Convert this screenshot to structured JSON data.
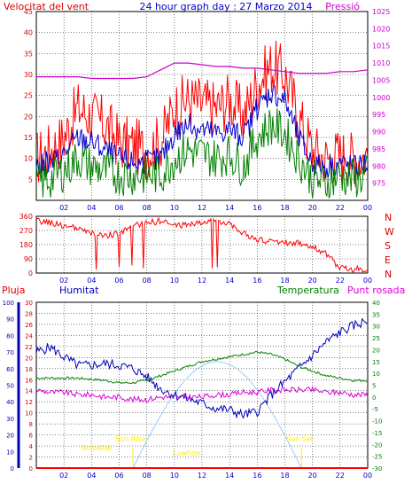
{
  "header": {
    "left_title": "Velocitat del vent",
    "center_title": "24 hour graph day : 27 Marzo 2014",
    "right_title": "Pressió"
  },
  "colors": {
    "wind_gust": "#ff0000",
    "wind_avg": "#0000cc",
    "wind_min": "#008000",
    "pressure": "#cc00cc",
    "direction": "#ff0000",
    "humidity": "#0000bb",
    "temperature": "#008000",
    "dewpoint": "#dd00dd",
    "rain": "#ff0000",
    "sun": "#99ccff",
    "sun_labels": "#ffee00",
    "grid": "#000000",
    "axis_time": "#0000cc"
  },
  "chart_data": [
    {
      "type": "line",
      "id": "wind-pressure",
      "title": "24 hour graph day : 27 Marzo 2014",
      "xlabel": "",
      "x_ticks": [
        "02",
        "04",
        "06",
        "08",
        "10",
        "12",
        "14",
        "16",
        "18",
        "20",
        "22",
        "00"
      ],
      "xlim": [
        0,
        24
      ],
      "left_axis": {
        "label": "Velocitat del vent",
        "ylim": [
          0,
          45
        ],
        "ticks": [
          5,
          10,
          15,
          20,
          25,
          30,
          35,
          40,
          45
        ]
      },
      "right_axis": {
        "label": "Pressió",
        "ylim": [
          970,
          1025
        ],
        "ticks": [
          975,
          980,
          985,
          990,
          995,
          1000,
          1005,
          1010,
          1015,
          1020,
          1025
        ]
      },
      "series": [
        {
          "name": "gust",
          "axis": "left",
          "x": [
            0,
            1,
            2,
            3,
            4,
            5,
            6,
            7,
            8,
            9,
            10,
            11,
            12,
            13,
            14,
            15,
            16,
            17,
            18,
            19,
            20,
            21,
            22,
            23,
            24
          ],
          "values": [
            10,
            12,
            15,
            22,
            20,
            18,
            14,
            13,
            12,
            14,
            22,
            24,
            23,
            22,
            24,
            20,
            28,
            32,
            30,
            20,
            12,
            10,
            11,
            10,
            11
          ]
        },
        {
          "name": "average",
          "axis": "left",
          "x": [
            0,
            1,
            2,
            3,
            4,
            5,
            6,
            7,
            8,
            9,
            10,
            11,
            12,
            13,
            14,
            15,
            16,
            17,
            18,
            19,
            20,
            21,
            22,
            23,
            24
          ],
          "values": [
            8,
            9,
            11,
            15,
            14,
            12,
            10,
            9,
            9,
            10,
            16,
            18,
            17,
            16,
            17,
            15,
            22,
            26,
            24,
            15,
            9,
            8,
            9,
            8,
            9
          ]
        },
        {
          "name": "minimum",
          "axis": "left",
          "x": [
            0,
            1,
            2,
            3,
            4,
            5,
            6,
            7,
            8,
            9,
            10,
            11,
            12,
            13,
            14,
            15,
            16,
            17,
            18,
            19,
            20,
            21,
            22,
            23,
            24
          ],
          "values": [
            4,
            5,
            7,
            10,
            8,
            7,
            6,
            6,
            6,
            6,
            10,
            12,
            11,
            10,
            11,
            8,
            15,
            18,
            16,
            10,
            5,
            4,
            6,
            5,
            6
          ]
        },
        {
          "name": "pressure",
          "axis": "right",
          "x": [
            0,
            1,
            2,
            3,
            4,
            5,
            6,
            7,
            8,
            9,
            10,
            11,
            12,
            13,
            14,
            15,
            16,
            17,
            18,
            19,
            20,
            21,
            22,
            23,
            24
          ],
          "values": [
            1006,
            1006,
            1006,
            1006,
            1005.5,
            1005.5,
            1005.5,
            1005.5,
            1006,
            1008,
            1010,
            1010,
            1009.5,
            1009,
            1009,
            1008.5,
            1008.5,
            1008,
            1007.5,
            1007,
            1007,
            1007,
            1007.5,
            1007.5,
            1008
          ]
        }
      ]
    },
    {
      "type": "line",
      "id": "wind-direction",
      "x_ticks": [
        "02",
        "04",
        "06",
        "08",
        "10",
        "12",
        "14",
        "16",
        "18",
        "20",
        "22",
        "00"
      ],
      "xlim": [
        0,
        24
      ],
      "y_ticks": [
        "0",
        "90",
        "180",
        "270",
        "360"
      ],
      "ylim": [
        0,
        360
      ],
      "right_labels": [
        "N",
        "W",
        "S",
        "E",
        "N"
      ],
      "series": [
        {
          "name": "direction",
          "x": [
            0,
            1,
            2,
            3,
            4,
            5,
            6,
            7,
            8,
            9,
            10,
            11,
            12,
            13,
            14,
            15,
            16,
            17,
            18,
            19,
            20,
            21,
            22,
            23,
            24
          ],
          "values": [
            330,
            320,
            300,
            280,
            250,
            240,
            250,
            300,
            320,
            330,
            300,
            310,
            320,
            330,
            320,
            250,
            210,
            200,
            195,
            190,
            170,
            120,
            30,
            25,
            25
          ]
        }
      ]
    },
    {
      "type": "line",
      "id": "humidity-temperature",
      "legend": [
        "Pluja",
        "Humitat",
        "Temperatura",
        "Punt rosada"
      ],
      "x_ticks": [
        "02",
        "04",
        "06",
        "08",
        "10",
        "12",
        "14",
        "16",
        "18",
        "20",
        "22",
        "00"
      ],
      "xlim": [
        0,
        24
      ],
      "rain_axis": {
        "label": "Pluja",
        "ylim": [
          0,
          30
        ],
        "ticks": [
          0,
          2,
          4,
          6,
          8,
          10,
          12,
          14,
          16,
          18,
          20,
          22,
          24,
          26,
          28,
          30
        ]
      },
      "humidity_axis": {
        "label": "Humitat",
        "ylim": [
          0,
          100
        ],
        "ticks": [
          0,
          10,
          20,
          30,
          40,
          50,
          60,
          70,
          80,
          90,
          100
        ]
      },
      "temperature_axis": {
        "label": "Temperatura",
        "ylim": [
          -30,
          40
        ],
        "ticks": [
          -30,
          -25,
          -20,
          -15,
          -10,
          -5,
          0,
          5,
          10,
          15,
          20,
          25,
          30,
          35,
          40
        ]
      },
      "series": [
        {
          "name": "Humitat",
          "axis": "humidity",
          "x": [
            0,
            1,
            2,
            3,
            4,
            5,
            6,
            7,
            8,
            9,
            10,
            11,
            12,
            13,
            14,
            15,
            16,
            17,
            18,
            19,
            20,
            21,
            22,
            23,
            24
          ],
          "values": [
            70,
            73,
            67,
            62,
            62,
            63,
            62,
            60,
            55,
            48,
            44,
            42,
            39,
            36,
            35,
            32,
            34,
            44,
            52,
            60,
            68,
            76,
            82,
            86,
            89
          ]
        },
        {
          "name": "Temperatura",
          "axis": "temperature",
          "x": [
            0,
            1,
            2,
            3,
            4,
            5,
            6,
            7,
            8,
            9,
            10,
            11,
            12,
            13,
            14,
            15,
            16,
            17,
            18,
            19,
            20,
            21,
            22,
            23,
            24
          ],
          "values": [
            8,
            8,
            8,
            8,
            7.5,
            7,
            6,
            6,
            7,
            9,
            11,
            13,
            15,
            16,
            17,
            18,
            19,
            18,
            16,
            13,
            11,
            9,
            8,
            7,
            7
          ]
        },
        {
          "name": "Punt rosada",
          "axis": "temperature",
          "x": [
            0,
            1,
            2,
            3,
            4,
            5,
            6,
            7,
            8,
            9,
            10,
            11,
            12,
            13,
            14,
            15,
            16,
            17,
            18,
            19,
            20,
            21,
            22,
            23,
            24
          ],
          "values": [
            3,
            2,
            2,
            1,
            1,
            0,
            0,
            -1,
            -1,
            0,
            0,
            0,
            0,
            1,
            1,
            2,
            2,
            3,
            3,
            3,
            3,
            2,
            2,
            1,
            1
          ]
        },
        {
          "name": "Pluja",
          "axis": "rain",
          "x": [
            0,
            24
          ],
          "values": [
            0,
            0
          ]
        }
      ],
      "annotations": [
        "Bisbalde",
        "Sun Rise",
        "Lowtide",
        "Sun Set"
      ]
    }
  ]
}
